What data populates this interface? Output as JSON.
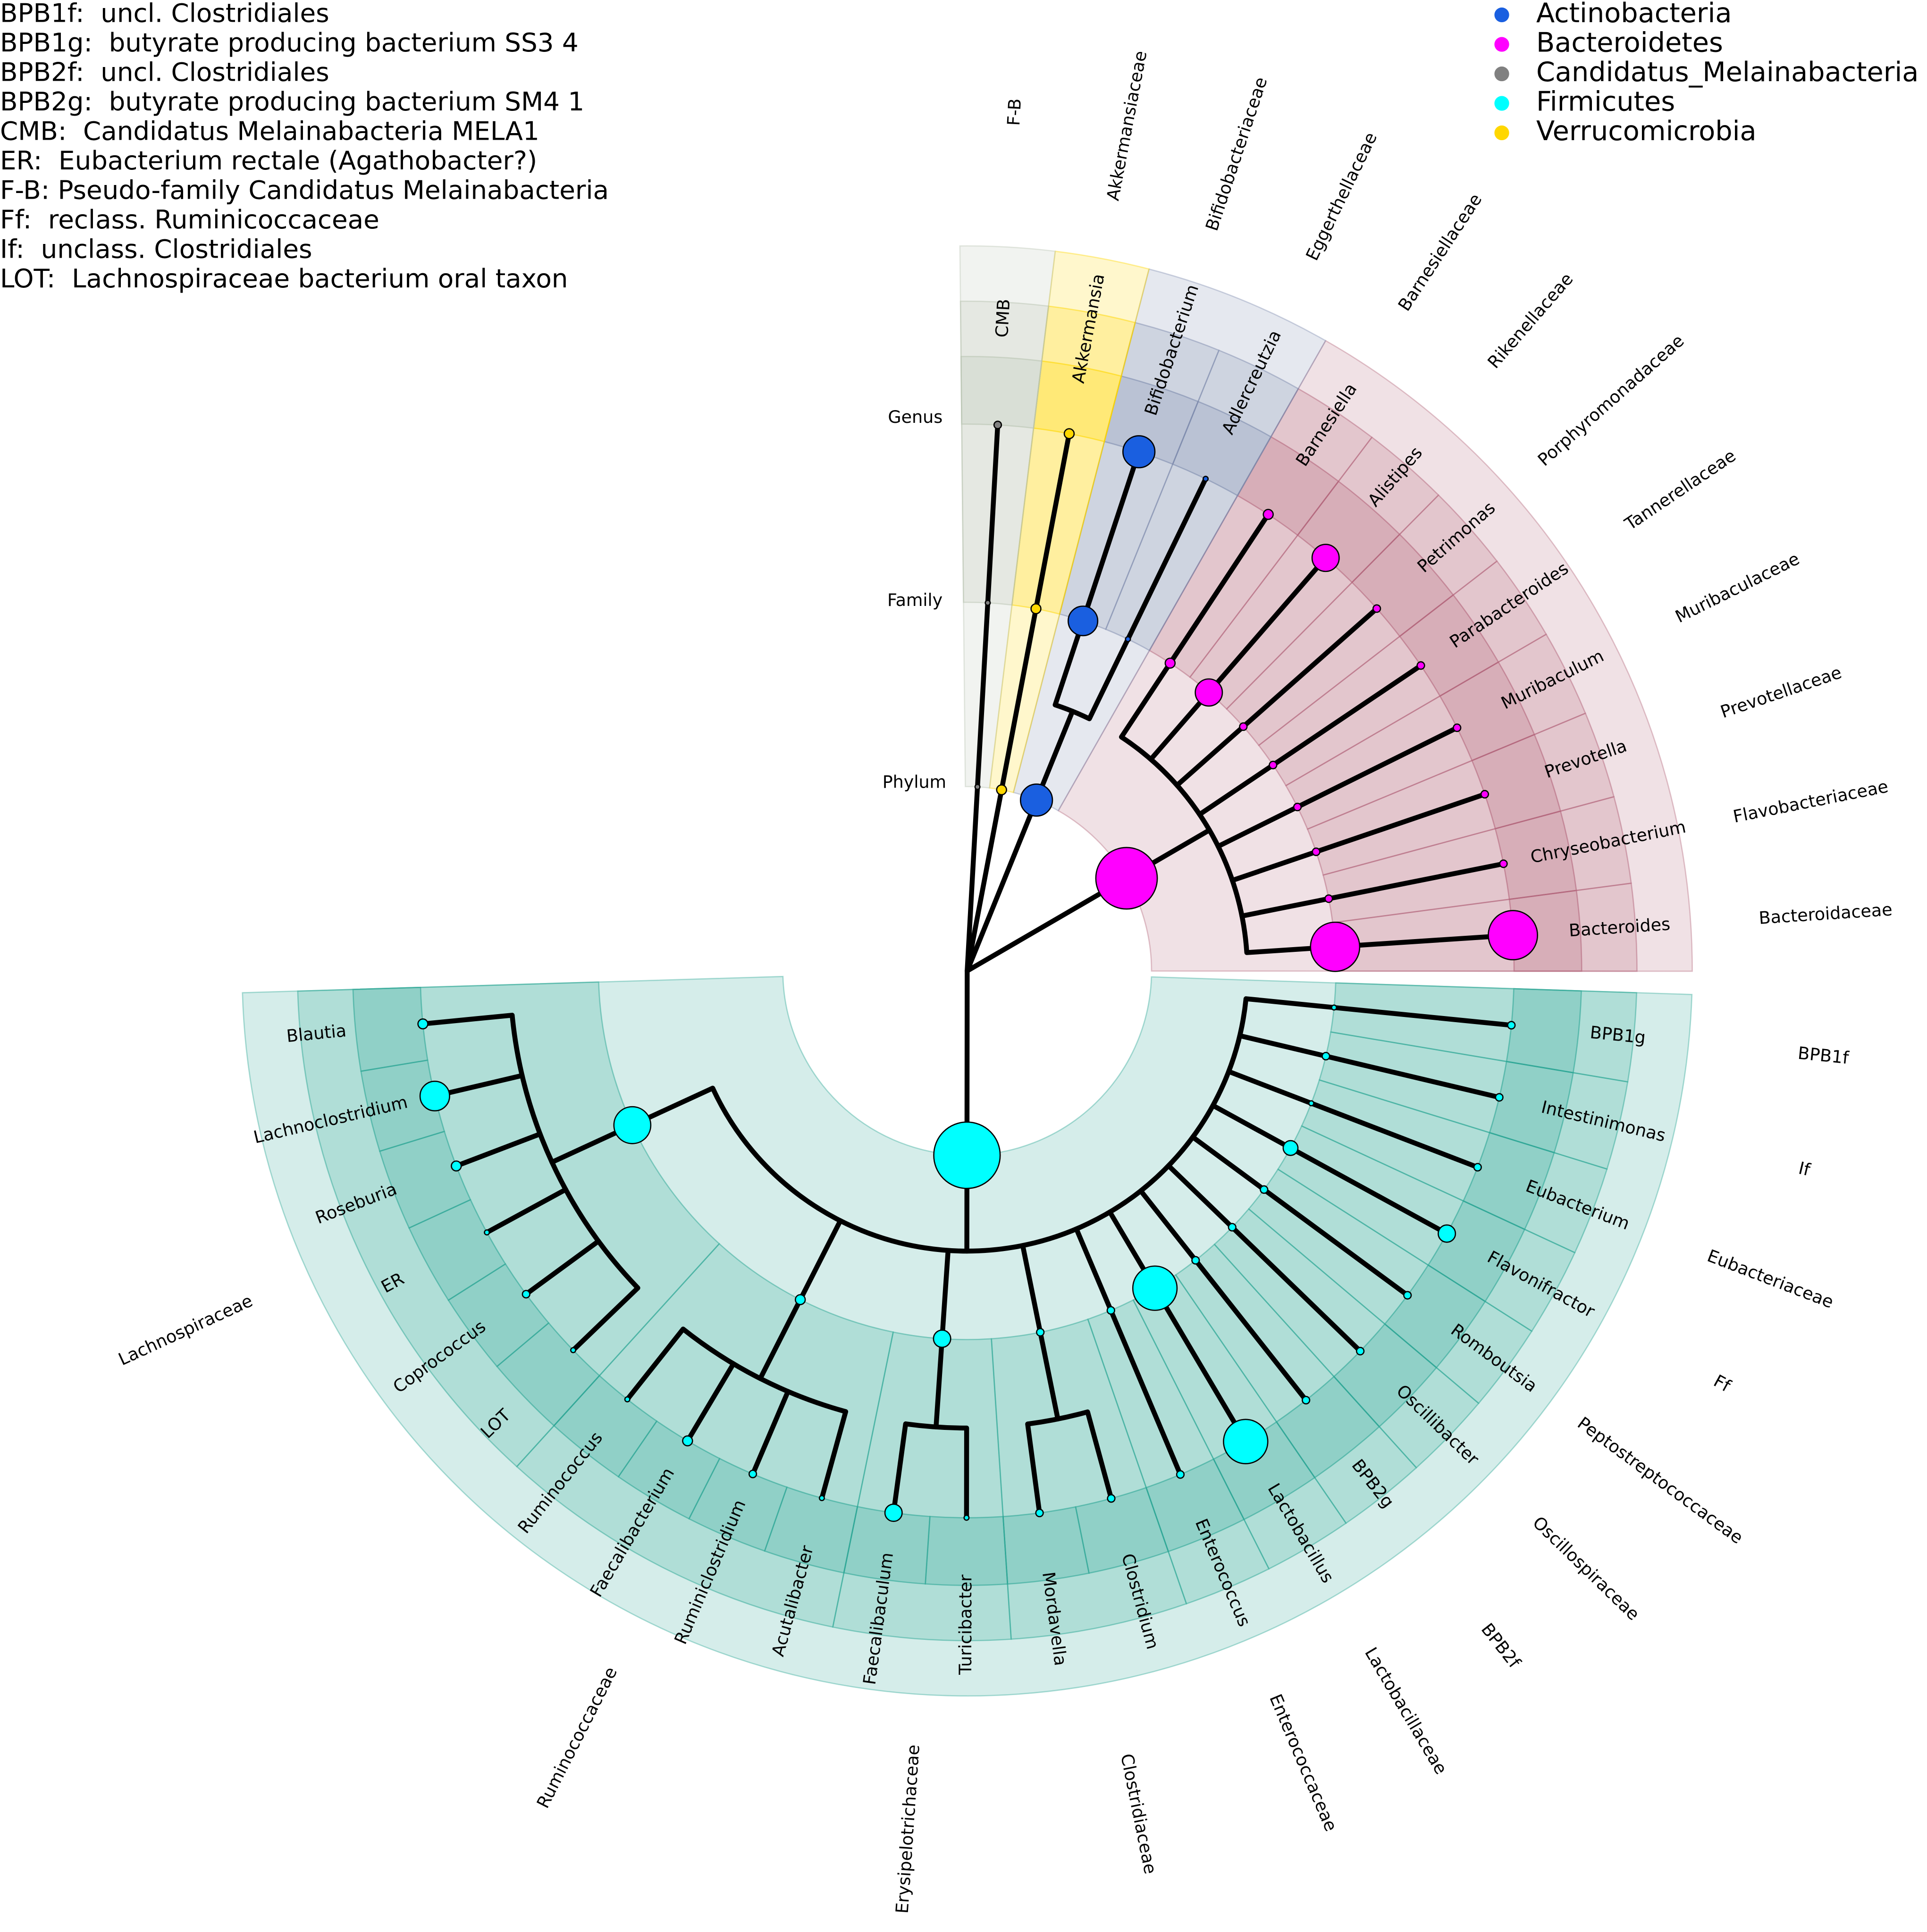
{
  "notes": [
    "BPB1f:  uncl. Clostridiales",
    "BPB1g:  butyrate producing bacterium SS3 4",
    "BPB2f:  uncl. Clostridiales",
    "BPB2g:  butyrate producing bacterium SM4 1",
    "CMB:  Candidatus Melainabacteria MELA1",
    "ER:  Eubacterium rectale (Agathobacter?)",
    "F-B: Pseudo-family Candidatus Melainabacteria",
    "Ff:  reclass. Ruminicoccaceae",
    "If:  unclass. Clostridiales",
    "LOT:  Lachnospiraceae bacterium oral taxon"
  ],
  "ring_labels": [
    "Genus",
    "Family",
    "Phylum"
  ],
  "phyla": [
    {
      "name": "Actinobacteria",
      "color": "#1a5fe0",
      "shade_color": "#7f8cae",
      "families": [
        {
          "name": "Eggerthellaceae",
          "genera": [
            "Adlercreutzia"
          ]
        },
        {
          "name": "Bifidobacteriaceae",
          "genera": [
            "Bifidobacterium"
          ]
        }
      ]
    },
    {
      "name": "Bacteroidetes",
      "color": "#ff00ff",
      "shade_color": "#b4687d",
      "families": [
        {
          "name": "Bacteroidaceae",
          "genera": [
            "Bacteroides"
          ]
        },
        {
          "name": "Flavobacteriaceae",
          "genera": [
            "Chryseobacterium"
          ]
        },
        {
          "name": "Prevotellaceae",
          "genera": [
            "Prevotella"
          ]
        },
        {
          "name": "Muribaculaceae",
          "genera": [
            "Muribaculum"
          ]
        },
        {
          "name": "Tannerellaceae",
          "genera": [
            "Parabacteroides"
          ]
        },
        {
          "name": "Porphyromonadaceae",
          "genera": [
            "Petrimonas"
          ]
        },
        {
          "name": "Rikenellaceae",
          "genera": [
            "Alistipes"
          ]
        },
        {
          "name": "Barnesiellaceae",
          "genera": [
            "Barnesiella"
          ]
        }
      ]
    },
    {
      "name": "Candidatus_Melainabacteria",
      "color": "#808080",
      "shade_color": "#b9c4b2",
      "families": [
        {
          "name": "F-B",
          "genera": [
            "CMB"
          ]
        }
      ]
    },
    {
      "name": "Firmicutes",
      "color": "#00ffff",
      "shade_color": "#2ea796",
      "families": [
        {
          "name": "BPB1f",
          "genera": [
            "BPB1g"
          ]
        },
        {
          "name": "If",
          "genera": [
            "Intestinimonas"
          ]
        },
        {
          "name": "Eubacteriaceae",
          "genera": [
            "Eubacterium"
          ]
        },
        {
          "name": "Ff",
          "genera": [
            "Flavonifractor"
          ]
        },
        {
          "name": "Peptostreptococcaceae",
          "genera": [
            "Romboutsia"
          ]
        },
        {
          "name": "Oscillospiraceae",
          "genera": [
            "Oscillibacter"
          ]
        },
        {
          "name": "BPB2f",
          "genera": [
            "BPB2g"
          ]
        },
        {
          "name": "Lactobacillaceae",
          "genera": [
            "Lactobacillus"
          ]
        },
        {
          "name": "Enterococcaceae",
          "genera": [
            "Enterococcus"
          ]
        },
        {
          "name": "Clostridiaceae",
          "genera": [
            "Clostridium",
            "Mordavella"
          ]
        },
        {
          "name": "Erysipelotrichaceae",
          "genera": [
            "Turicibacter",
            "Faecalibaculum"
          ]
        },
        {
          "name": "Ruminococcaceae",
          "genera": [
            "Acutalibacter",
            "Ruminiclostridium",
            "Faecalibacterium",
            "Ruminococcus"
          ]
        },
        {
          "name": "Lachnospiraceae",
          "genera": [
            "LOT",
            "Coprococcus",
            "ER",
            "Roseburia",
            "Lachnoclostridium",
            "Blautia"
          ]
        }
      ]
    },
    {
      "name": "Verrucomicrobia",
      "color": "#ffd700",
      "shade_color": "#ffd700",
      "families": [
        {
          "name": "Akkermansiaceae",
          "genera": [
            "Akkermansia"
          ]
        }
      ]
    }
  ]
}
